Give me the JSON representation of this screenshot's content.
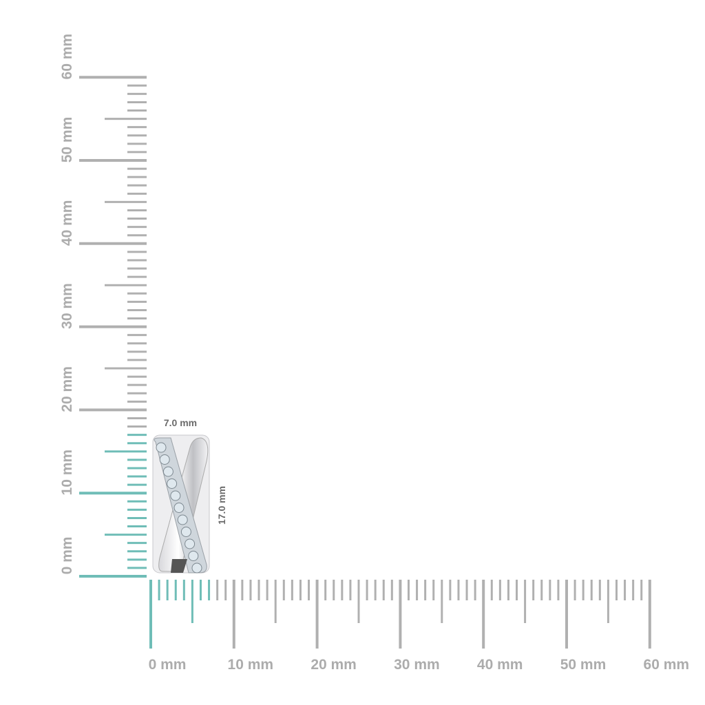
{
  "rulers": {
    "unit": "mm",
    "range": [
      0,
      60
    ],
    "vertical_labels": [
      "0 mm",
      "10 mm",
      "20 mm",
      "30 mm",
      "40 mm",
      "50 mm",
      "60 mm"
    ],
    "horizontal_labels": [
      "0 mm",
      "10 mm",
      "20 mm",
      "30 mm",
      "40 mm",
      "50 mm",
      "60 mm"
    ],
    "tick_color": "#b0b0b0",
    "highlight_color": "#6fbdb7"
  },
  "product": {
    "width_mm": 7.0,
    "height_mm": 17.0,
    "width_label": "7.0 mm",
    "height_label": "17.0 mm"
  }
}
